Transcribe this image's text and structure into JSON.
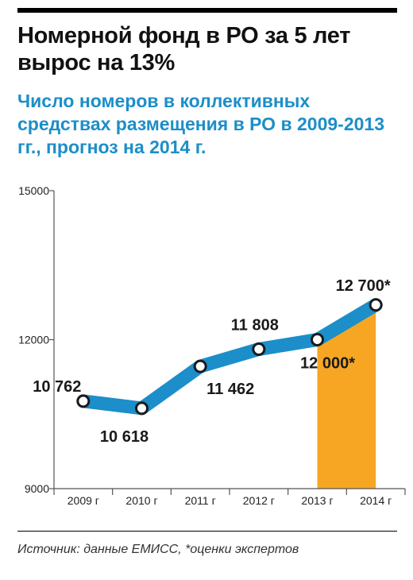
{
  "header": {
    "title": "Номерной фонд в РО за 5 лет вырос на 13%",
    "subtitle": "Число номеров в коллективных средствах размещения в РО в 2009-2013 гг., прогноз на 2014 г."
  },
  "footer": {
    "source": "Источник: данные ЕМИСС, *оценки экспертов"
  },
  "colors": {
    "line": "#1c8ec9",
    "highlight": "#f6a623",
    "marker_outline": "#1a1a1a",
    "axis": "#555555"
  },
  "chart_data": {
    "type": "line",
    "title": "Число номеров в коллективных средствах размещения в РО в 2009-2013 гг., прогноз на 2014 г.",
    "categories": [
      "2009 г",
      "2010 г",
      "2011 г",
      "2012 г",
      "2013 г",
      "2014 г"
    ],
    "series": [
      {
        "values": [
          10762,
          10618,
          11462,
          11808,
          12000,
          12700
        ]
      }
    ],
    "data_labels": [
      "10 762",
      "10 618",
      "11 462",
      "11 808",
      "12 000*",
      "12 700*"
    ],
    "yticks": [
      9000,
      12000,
      15000
    ],
    "ytick_labels": [
      "9000",
      "12000",
      "15000"
    ],
    "ylim": [
      9000,
      15000
    ],
    "highlight_area": {
      "from": "2013 г",
      "to": "2014 г",
      "note": "forecast"
    },
    "grid": false
  }
}
